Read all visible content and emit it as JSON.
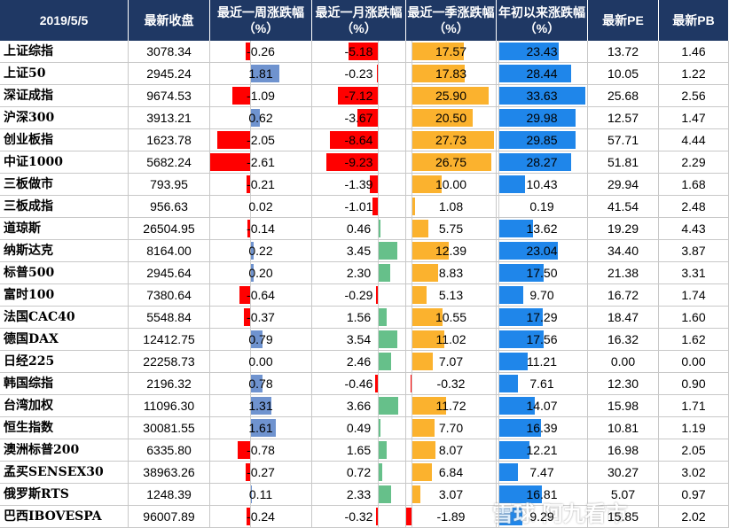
{
  "colors": {
    "header_bg": "#1f3864",
    "header_text": "#ffffff",
    "negative_red": "#ff0000",
    "positive_blue": "#6f93cf",
    "positive_green": "#66c08a",
    "quarter_orange": "#fbb22e",
    "ytd_blue": "#1f86ea"
  },
  "watermark": "雪球 阿九看市",
  "chart_data": {
    "type": "table",
    "headers": [
      "2019/5/5",
      "最新收盘",
      "最近一周涨跌幅（%）",
      "最近一月涨跌幅（%）",
      "最近一季涨跌幅（%）",
      "年初以来涨跌幅（%）",
      "最新PE",
      "最新PB"
    ],
    "rows": [
      {
        "name": "上证综指",
        "close": "3078.34",
        "w": -0.26,
        "m": -5.18,
        "q": 17.57,
        "y": 23.43,
        "pe": "13.72",
        "pb": "1.46"
      },
      {
        "name": "上证50",
        "close": "2945.24",
        "w": 1.81,
        "m": -0.23,
        "q": 17.83,
        "y": 28.44,
        "pe": "10.05",
        "pb": "1.22"
      },
      {
        "name": "深证成指",
        "close": "9674.53",
        "w": -1.09,
        "m": -7.12,
        "q": 25.9,
        "y": 33.63,
        "pe": "25.68",
        "pb": "2.56"
      },
      {
        "name": "沪深300",
        "close": "3913.21",
        "w": 0.62,
        "m": -3.67,
        "q": 20.5,
        "y": 29.98,
        "pe": "12.57",
        "pb": "1.47"
      },
      {
        "name": "创业板指",
        "close": "1623.78",
        "w": -2.05,
        "m": -8.64,
        "q": 27.73,
        "y": 29.85,
        "pe": "57.71",
        "pb": "4.44"
      },
      {
        "name": "中证1000",
        "close": "5682.24",
        "w": -2.61,
        "m": -9.23,
        "q": 26.75,
        "y": 28.27,
        "pe": "51.81",
        "pb": "2.29"
      },
      {
        "name": "三板做市",
        "close": "793.95",
        "w": -0.21,
        "m": -1.39,
        "q": 10.0,
        "y": 10.43,
        "pe": "29.94",
        "pb": "1.68"
      },
      {
        "name": "三板成指",
        "close": "956.63",
        "w": 0.02,
        "m": -1.01,
        "q": 1.08,
        "y": 0.19,
        "pe": "41.54",
        "pb": "2.48"
      },
      {
        "name": "道琼斯",
        "close": "26504.95",
        "w": -0.14,
        "m": 0.46,
        "q": 5.75,
        "y": 13.62,
        "pe": "19.29",
        "pb": "4.43"
      },
      {
        "name": "纳斯达克",
        "close": "8164.00",
        "w": 0.22,
        "m": 3.45,
        "q": 12.39,
        "y": 23.04,
        "pe": "34.40",
        "pb": "3.87"
      },
      {
        "name": "标普500",
        "close": "2945.64",
        "w": 0.2,
        "m": 2.3,
        "q": 8.83,
        "y": 17.5,
        "pe": "21.38",
        "pb": "3.31"
      },
      {
        "name": "富时100",
        "close": "7380.64",
        "w": -0.64,
        "m": -0.29,
        "q": 5.13,
        "y": 9.7,
        "pe": "16.72",
        "pb": "1.74"
      },
      {
        "name": "法国CAC40",
        "close": "5548.84",
        "w": -0.37,
        "m": 1.56,
        "q": 10.55,
        "y": 17.29,
        "pe": "18.47",
        "pb": "1.60"
      },
      {
        "name": "德国DAX",
        "close": "12412.75",
        "w": 0.79,
        "m": 3.54,
        "q": 11.02,
        "y": 17.56,
        "pe": "16.32",
        "pb": "1.62"
      },
      {
        "name": "日经225",
        "close": "22258.73",
        "w": 0.0,
        "m": 2.46,
        "q": 7.07,
        "y": 11.21,
        "pe": "0.00",
        "pb": "0.00"
      },
      {
        "name": "韩国综指",
        "close": "2196.32",
        "w": 0.78,
        "m": -0.46,
        "q": -0.32,
        "y": 7.61,
        "pe": "12.30",
        "pb": "0.90"
      },
      {
        "name": "台湾加权",
        "close": "11096.30",
        "w": 1.31,
        "m": 3.66,
        "q": 11.72,
        "y": 14.07,
        "pe": "15.98",
        "pb": "1.71"
      },
      {
        "name": "恒生指数",
        "close": "30081.55",
        "w": 1.61,
        "m": 0.49,
        "q": 7.7,
        "y": 16.39,
        "pe": "10.81",
        "pb": "1.19"
      },
      {
        "name": "澳洲标普200",
        "close": "6335.80",
        "w": -0.78,
        "m": 1.65,
        "q": 8.07,
        "y": 12.21,
        "pe": "16.98",
        "pb": "2.05"
      },
      {
        "name": "孟买SENSEX30",
        "close": "38963.26",
        "w": -0.27,
        "m": 0.72,
        "q": 6.84,
        "y": 7.47,
        "pe": "30.27",
        "pb": "3.02"
      },
      {
        "name": "俄罗斯RTS",
        "close": "1248.39",
        "w": 0.11,
        "m": 2.33,
        "q": 3.07,
        "y": 16.81,
        "pe": "5.07",
        "pb": "0.97"
      },
      {
        "name": "巴西IBOVESPA",
        "close": "96007.89",
        "w": -0.24,
        "m": -0.32,
        "q": -1.89,
        "y": 9.29,
        "pe": "15.85",
        "pb": "2.02"
      }
    ]
  }
}
